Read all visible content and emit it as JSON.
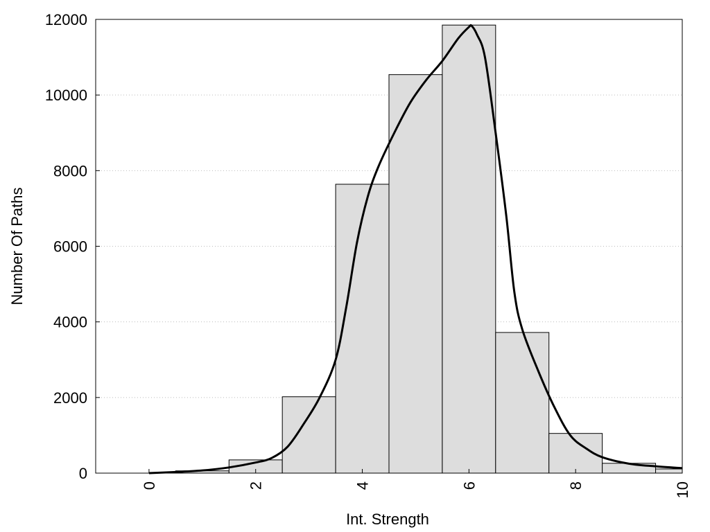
{
  "chart_data": {
    "type": "bar",
    "xlabel": "Int. Strength",
    "ylabel": "Number Of Paths",
    "xlim": [
      -1,
      10
    ],
    "ylim": [
      0,
      12000
    ],
    "x_ticks": [
      0,
      2,
      4,
      6,
      8,
      10
    ],
    "y_ticks": [
      0,
      2000,
      4000,
      6000,
      8000,
      10000,
      12000
    ],
    "grid": "horizontal-dotted",
    "bar_color": "#dddddd",
    "edge_color": "#000000",
    "bars": [
      {
        "x": 0,
        "value": 0
      },
      {
        "x": 1,
        "value": 60
      },
      {
        "x": 2,
        "value": 350
      },
      {
        "x": 3,
        "value": 2020
      },
      {
        "x": 4,
        "value": 7640
      },
      {
        "x": 5,
        "value": 10540
      },
      {
        "x": 6,
        "value": 11850
      },
      {
        "x": 7,
        "value": 3720
      },
      {
        "x": 8,
        "value": 1050
      },
      {
        "x": 9,
        "value": 260
      },
      {
        "x": 10,
        "value": 110
      }
    ],
    "curve": {
      "color": "#000000",
      "points": [
        [
          0,
          0
        ],
        [
          0.5,
          30
        ],
        [
          1,
          70
        ],
        [
          1.5,
          150
        ],
        [
          2,
          280
        ],
        [
          2.3,
          400
        ],
        [
          2.6,
          700
        ],
        [
          2.9,
          1300
        ],
        [
          3.2,
          2000
        ],
        [
          3.5,
          3000
        ],
        [
          3.7,
          4400
        ],
        [
          3.9,
          6100
        ],
        [
          4.1,
          7300
        ],
        [
          4.3,
          8100
        ],
        [
          4.6,
          9000
        ],
        [
          4.9,
          9800
        ],
        [
          5.2,
          10400
        ],
        [
          5.5,
          10900
        ],
        [
          5.8,
          11500
        ],
        [
          6.0,
          11800
        ],
        [
          6.05,
          11830
        ],
        [
          6.15,
          11600
        ],
        [
          6.3,
          11000
        ],
        [
          6.5,
          9000
        ],
        [
          6.7,
          6800
        ],
        [
          6.85,
          4800
        ],
        [
          7.0,
          3800
        ],
        [
          7.3,
          2700
        ],
        [
          7.6,
          1750
        ],
        [
          7.9,
          1000
        ],
        [
          8.2,
          650
        ],
        [
          8.5,
          420
        ],
        [
          9.0,
          250
        ],
        [
          9.5,
          180
        ],
        [
          10.0,
          130
        ]
      ]
    }
  }
}
